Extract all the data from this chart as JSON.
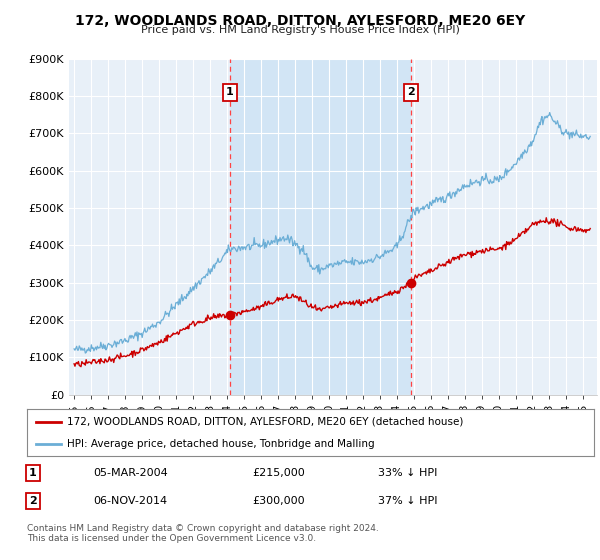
{
  "title": "172, WOODLANDS ROAD, DITTON, AYLESFORD, ME20 6EY",
  "subtitle": "Price paid vs. HM Land Registry's House Price Index (HPI)",
  "legend_line1": "172, WOODLANDS ROAD, DITTON, AYLESFORD, ME20 6EY (detached house)",
  "legend_line2": "HPI: Average price, detached house, Tonbridge and Malling",
  "footnote": "Contains HM Land Registry data © Crown copyright and database right 2024.\nThis data is licensed under the Open Government Licence v3.0.",
  "marker1_label": "1",
  "marker1_date": "05-MAR-2004",
  "marker1_price": "£215,000",
  "marker1_hpi": "33% ↓ HPI",
  "marker2_label": "2",
  "marker2_date": "06-NOV-2014",
  "marker2_price": "£300,000",
  "marker2_hpi": "37% ↓ HPI",
  "hpi_color": "#6baed6",
  "price_color": "#cc0000",
  "marker_color": "#ee0000",
  "dashed_color": "#ff4444",
  "background_color": "#ffffff",
  "plot_bg_color": "#e8f0f8",
  "grid_color": "#ffffff",
  "shade_color": "#d0e4f5",
  "ylim": [
    0,
    900000
  ],
  "yticks": [
    0,
    100000,
    200000,
    300000,
    400000,
    500000,
    600000,
    700000,
    800000,
    900000
  ],
  "ytick_labels": [
    "£0",
    "£100K",
    "£200K",
    "£300K",
    "£400K",
    "£500K",
    "£600K",
    "£700K",
    "£800K",
    "£900K"
  ],
  "xmin": 1994.7,
  "xmax": 2025.8,
  "marker1_x": 2004.18,
  "marker2_x": 2014.85,
  "marker1_y": 215000,
  "marker2_y": 300000
}
